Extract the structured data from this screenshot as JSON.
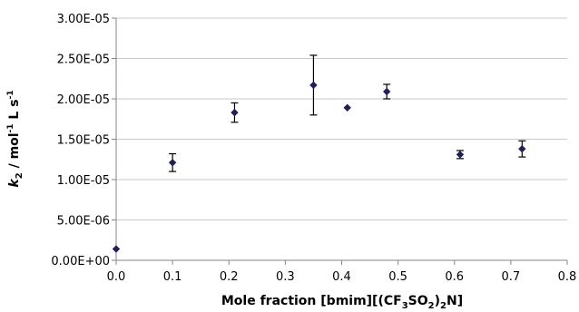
{
  "chart_data": {
    "type": "scatter",
    "title": "",
    "xlabel": "Mole fraction [bmim][(CF3SO2)2N]",
    "xlabel_parts": [
      "Mole fraction [bmim][(CF",
      "3",
      "SO",
      "2",
      ")",
      "2",
      "N]"
    ],
    "ylabel": "k2 / mol-1 L s-1",
    "ylabel_parts": [
      "k",
      "2",
      " / mol",
      "-1",
      " L s",
      "-1"
    ],
    "xlim": [
      0,
      0.8
    ],
    "ylim": [
      0,
      3e-05
    ],
    "xticks": [
      "0.0",
      "0.1",
      "0.2",
      "0.3",
      "0.4",
      "0.5",
      "0.6",
      "0.7",
      "0.8"
    ],
    "yticks": [
      "0.00E+00",
      "5.00E-06",
      "1.00E-05",
      "1.50E-05",
      "2.00E-05",
      "2.50E-05",
      "3.00E-05"
    ],
    "grid": "horizontal",
    "marker_color": "#1f1f5c",
    "points": [
      {
        "x": 0.0,
        "y": 1.4e-06,
        "err": 0
      },
      {
        "x": 0.1,
        "y": 1.21e-05,
        "err": 1.1e-06
      },
      {
        "x": 0.21,
        "y": 1.83e-05,
        "err": 1.2e-06
      },
      {
        "x": 0.35,
        "y": 2.17e-05,
        "err": 3.7e-06
      },
      {
        "x": 0.41,
        "y": 1.89e-05,
        "err": 0
      },
      {
        "x": 0.48,
        "y": 2.09e-05,
        "err": 9e-07
      },
      {
        "x": 0.61,
        "y": 1.31e-05,
        "err": 5e-07
      },
      {
        "x": 0.72,
        "y": 1.38e-05,
        "err": 1e-06
      }
    ]
  }
}
